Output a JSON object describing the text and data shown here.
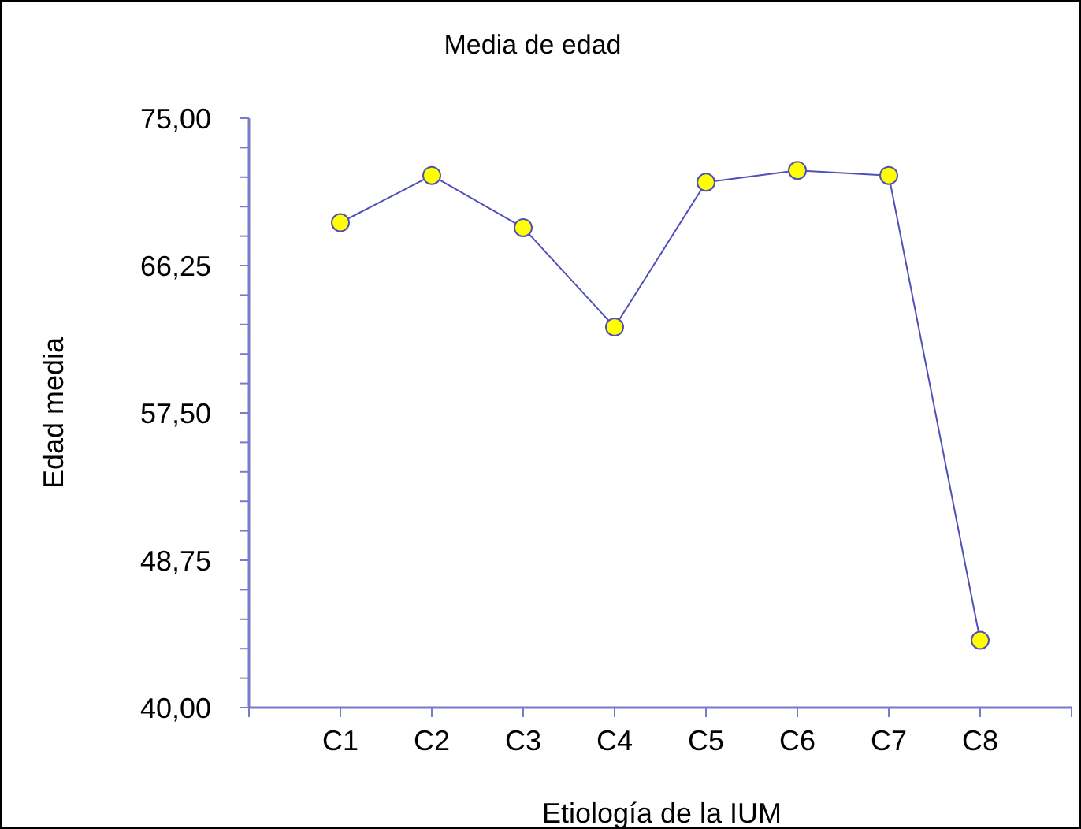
{
  "chart_data": {
    "type": "line",
    "title": "Media de edad",
    "xlabel": "Etiología de la IUM",
    "ylabel": "Edad media",
    "categories": [
      "C1",
      "C2",
      "C3",
      "C4",
      "C5",
      "C6",
      "C7",
      "C8"
    ],
    "series": [
      {
        "color": "#5050b8",
        "values": [
          68.8,
          71.6,
          68.5,
          62.6,
          71.2,
          71.9,
          71.6,
          44.0
        ]
      }
    ],
    "ylim": [
      40,
      75
    ],
    "yticks": [
      {
        "value": 40,
        "label": "40,00"
      },
      {
        "value": 41.75,
        "label": null
      },
      {
        "value": 43.5,
        "label": null
      },
      {
        "value": 45.25,
        "label": null
      },
      {
        "value": 47,
        "label": null
      },
      {
        "value": 48.75,
        "label": "48,75"
      },
      {
        "value": 50.5,
        "label": null
      },
      {
        "value": 52.25,
        "label": null
      },
      {
        "value": 54,
        "label": null
      },
      {
        "value": 55.75,
        "label": null
      },
      {
        "value": 57.5,
        "label": "57,50"
      },
      {
        "value": 59.25,
        "label": null
      },
      {
        "value": 61,
        "label": null
      },
      {
        "value": 62.75,
        "label": null
      },
      {
        "value": 64.5,
        "label": null
      },
      {
        "value": 66.25,
        "label": "66,25"
      },
      {
        "value": 68,
        "label": null
      },
      {
        "value": 69.75,
        "label": null
      },
      {
        "value": 71.5,
        "label": null
      },
      {
        "value": 73.25,
        "label": null
      },
      {
        "value": 75,
        "label": "75,00"
      }
    ],
    "marker": "circle",
    "grid": false
  }
}
